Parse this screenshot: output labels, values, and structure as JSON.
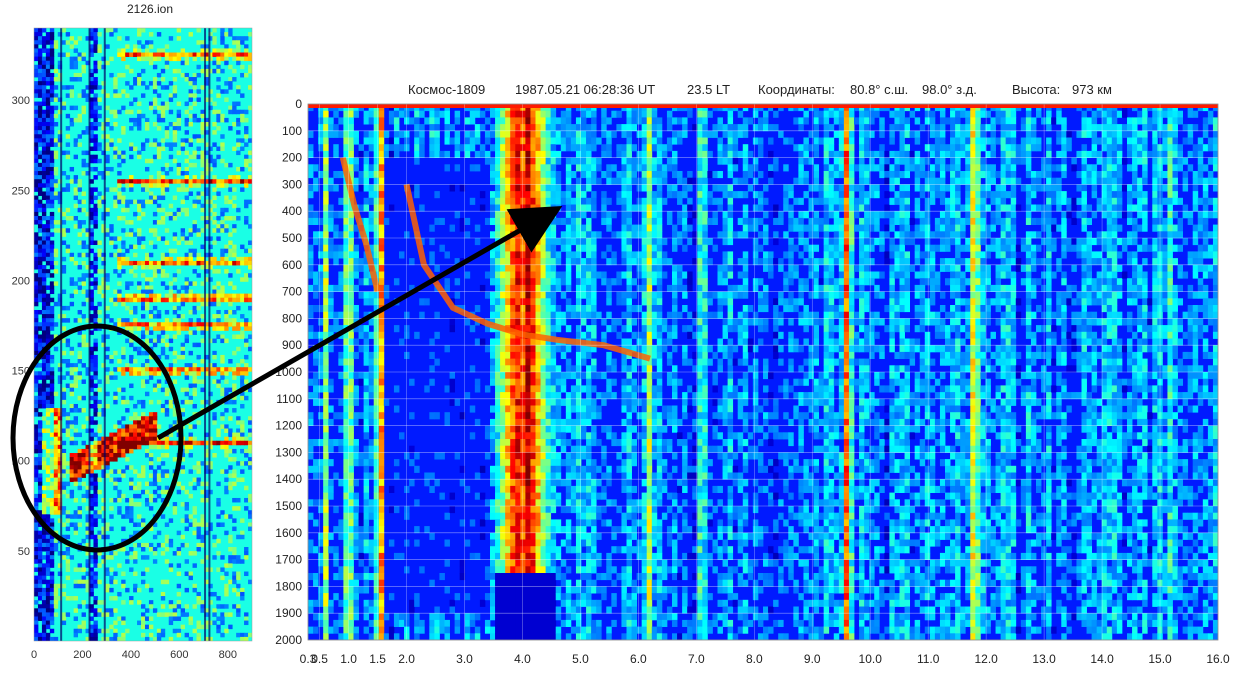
{
  "left_panel": {
    "title": "2126.ion"
  },
  "main_panel": {
    "header": {
      "satellite": "Космос-1809",
      "datetime": "1987.05.21 06:28:36 UT",
      "local_time": "23.5 LT",
      "coords_label": "Координаты:",
      "lat": "80.8° с.ш.",
      "lon": "98.0° з.д.",
      "alt_label": "Высота:",
      "alt_value": "973 км"
    }
  },
  "chart_data": [
    {
      "type": "heatmap",
      "title": "2126.ion",
      "xlabel": "",
      "ylabel": "",
      "xlim": [
        0,
        900
      ],
      "ylim": [
        0,
        340
      ],
      "x_ticks": [
        0,
        200,
        400,
        600,
        800
      ],
      "y_ticks": [
        50,
        100,
        150,
        200,
        250,
        300
      ],
      "y_tick_labels": [
        "50",
        "100",
        "150",
        "200",
        "250",
        "300"
      ],
      "colormap": "jet",
      "annotation": {
        "type": "ellipse",
        "color": "#000000"
      }
    },
    {
      "type": "heatmap",
      "title": "",
      "xlabel": "",
      "ylabel": "",
      "xlim": [
        0.3,
        16.0
      ],
      "ylim": [
        2000,
        0
      ],
      "x_ticks": [
        0.3,
        0.5,
        1.0,
        1.5,
        2.0,
        3.0,
        4.0,
        5.0,
        6.0,
        7.0,
        8.0,
        9.0,
        10.0,
        11.0,
        12.0,
        13.0,
        14.0,
        15.0,
        16.0
      ],
      "x_tick_labels": [
        "0.3",
        "0.5",
        "1.0",
        "1.5",
        "2.0",
        "3.0",
        "4.0",
        "5.0",
        "6.0",
        "7.0",
        "8.0",
        "9.0",
        "10.0",
        "11.0",
        "12.0",
        "13.0",
        "14.0",
        "15.0",
        "16.0"
      ],
      "y_ticks": [
        0,
        100,
        200,
        300,
        400,
        500,
        600,
        700,
        800,
        900,
        1000,
        1100,
        1200,
        1300,
        1400,
        1500,
        1600,
        1700,
        1800,
        1900,
        2000
      ],
      "grid": true,
      "colormap": "jet",
      "bands": [
        {
          "x": 0.6,
          "level": 0.55
        },
        {
          "x": 1.0,
          "level": 0.65
        },
        {
          "x": 1.55,
          "level": 0.8
        },
        {
          "x": 3.9,
          "level": 0.9
        },
        {
          "x": 4.1,
          "level": 0.95
        },
        {
          "x": 6.2,
          "level": 0.6
        },
        {
          "x": 7.1,
          "level": 0.55
        },
        {
          "x": 9.6,
          "level": 0.85
        },
        {
          "x": 11.8,
          "level": 0.75
        },
        {
          "x": 15.2,
          "level": 0.5
        }
      ],
      "traces": [
        {
          "name": "",
          "x": [
            0.9,
            1.1,
            1.3,
            1.5
          ],
          "y": [
            200,
            380,
            520,
            700
          ]
        },
        {
          "name": "",
          "x": [
            2.0,
            2.3,
            2.8,
            3.4,
            4.0,
            4.6,
            5.4,
            6.2
          ],
          "y": [
            300,
            600,
            760,
            820,
            860,
            880,
            900,
            950
          ]
        }
      ],
      "annotation": {
        "type": "arrow",
        "color": "#000000"
      }
    }
  ]
}
